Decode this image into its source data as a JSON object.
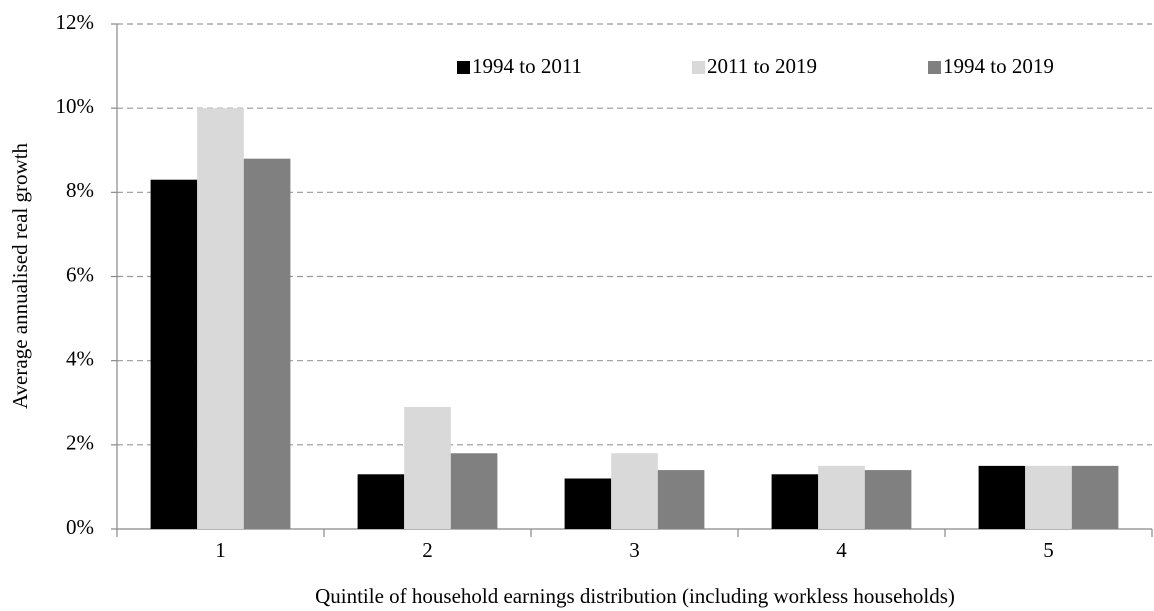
{
  "chart_data": {
    "type": "bar",
    "y_label": "Average annualised real growth",
    "x_label": "Quintile of household earnings distribution (including workless households)",
    "categories": [
      "1",
      "2",
      "3",
      "4",
      "5"
    ],
    "series": [
      {
        "name": "1994 to 2011",
        "color": "#000000",
        "values": [
          8.3,
          1.3,
          1.2,
          1.3,
          1.5
        ]
      },
      {
        "name": "2011 to 2019",
        "color": "#d9d9d9",
        "values": [
          10.0,
          2.9,
          1.8,
          1.5,
          1.5
        ]
      },
      {
        "name": "1994 to 2019",
        "color": "#808080",
        "values": [
          8.8,
          1.8,
          1.4,
          1.4,
          1.5
        ]
      }
    ],
    "ylim": [
      0,
      12
    ],
    "yticks": [
      {
        "value": 0,
        "label": "0%"
      },
      {
        "value": 2,
        "label": "2%"
      },
      {
        "value": 4,
        "label": "4%"
      },
      {
        "value": 6,
        "label": "6%"
      },
      {
        "value": 8,
        "label": "8%"
      },
      {
        "value": 10,
        "label": "10%"
      },
      {
        "value": 12,
        "label": "12%"
      }
    ],
    "grid": true,
    "legend": "top"
  }
}
